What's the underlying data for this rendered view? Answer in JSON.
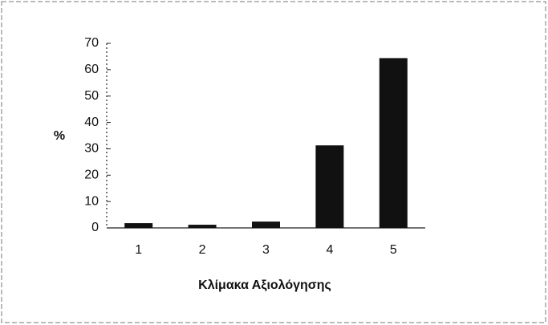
{
  "chart_data": {
    "type": "bar",
    "categories": [
      "1",
      "2",
      "3",
      "4",
      "5"
    ],
    "values": [
      1.8,
      1.2,
      2.4,
      31.3,
      64.4
    ],
    "color": "#111111",
    "ylabel": "%",
    "xlabel": "Κλίμακα Αξιολόγησης",
    "ylim": [
      0,
      70
    ],
    "yticks": [
      0,
      10,
      20,
      30,
      40,
      50,
      60,
      70
    ]
  }
}
